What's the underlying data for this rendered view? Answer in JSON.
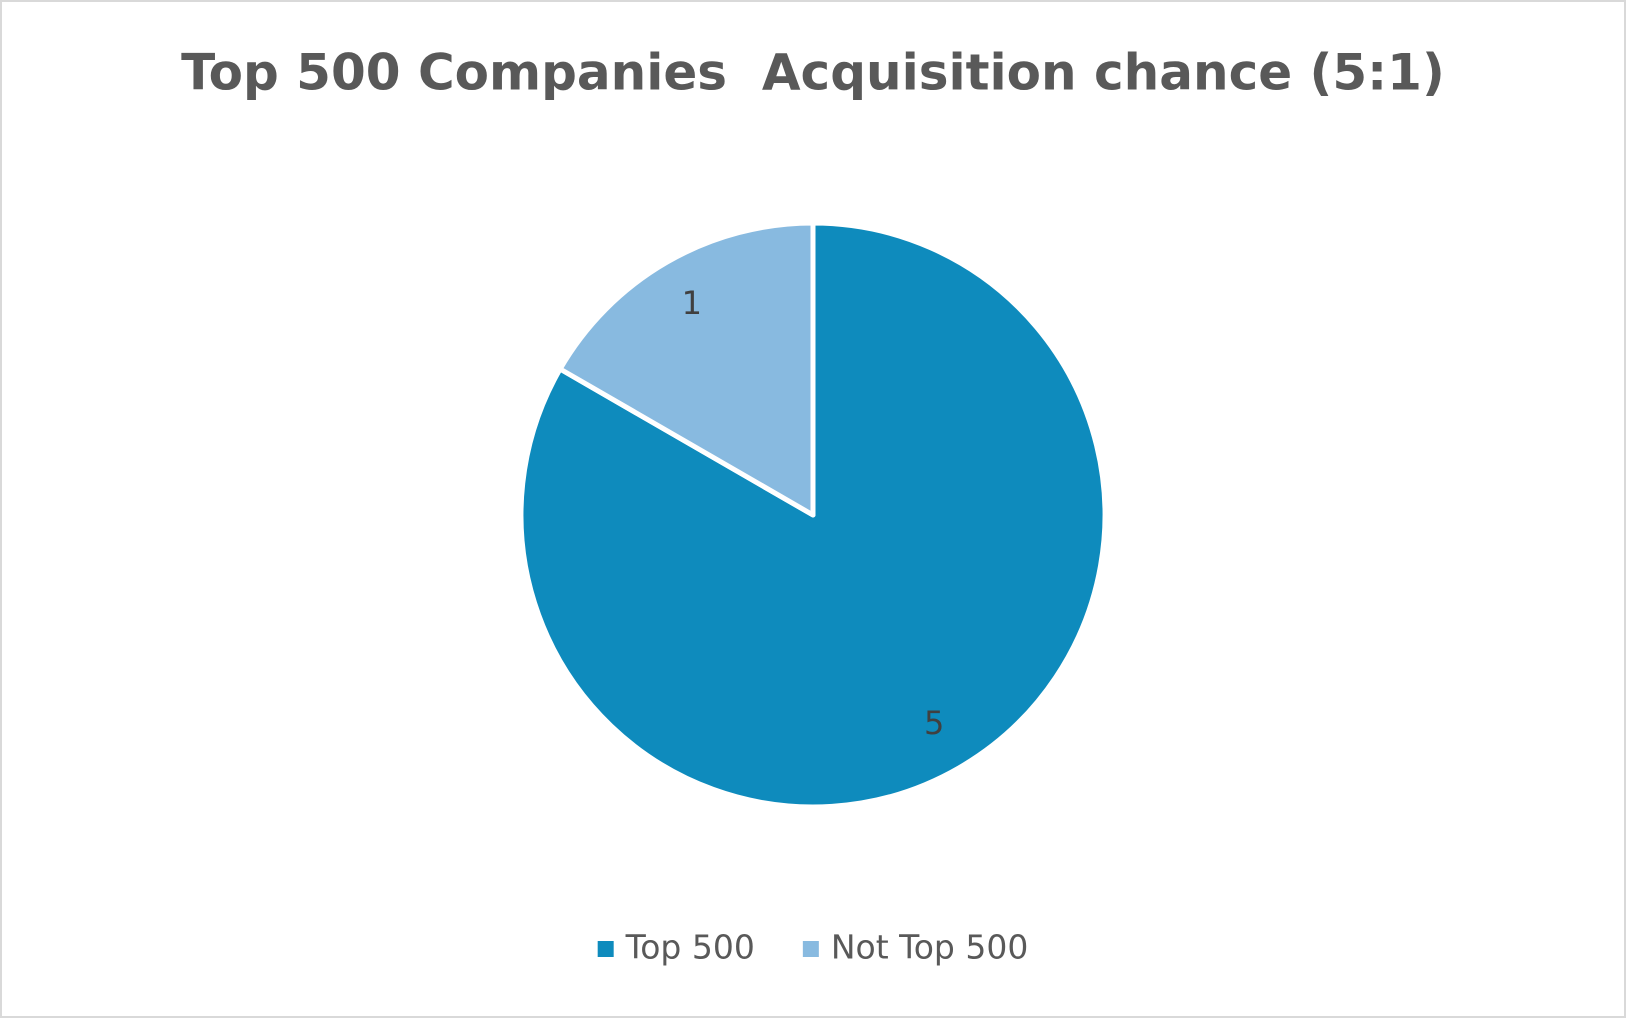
{
  "chart_data": {
    "type": "pie",
    "title": "Top 500 Companies  Acquisition chance (5:1)",
    "categories": [
      "Top 500",
      "Not Top 500"
    ],
    "values": [
      5,
      1
    ],
    "colors": [
      "#0e8bbd",
      "#88bae0"
    ],
    "legend": "bottom"
  }
}
